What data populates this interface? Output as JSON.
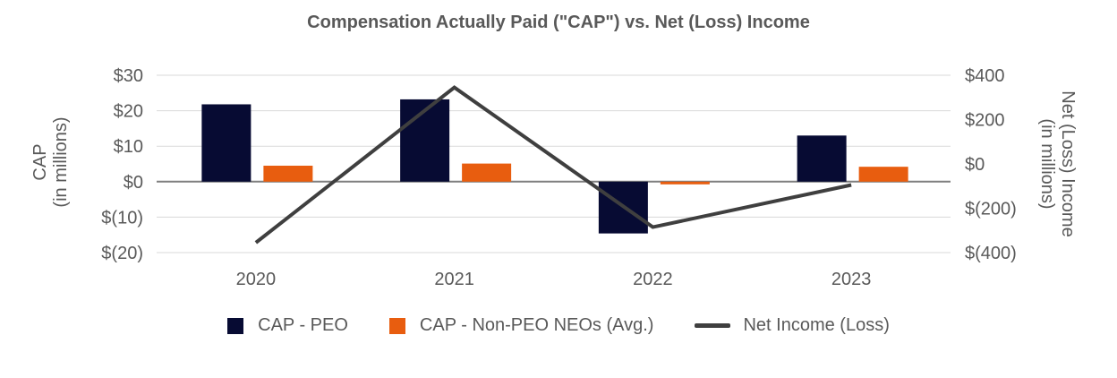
{
  "title": "Compensation Actually Paid (\"CAP\") vs. Net (Loss) Income",
  "chart_data": {
    "type": "combo",
    "categories": [
      "2020",
      "2021",
      "2022",
      "2023"
    ],
    "series": [
      {
        "name": "CAP - PEO",
        "kind": "bar",
        "axis": "left",
        "color": "#070b33",
        "values": [
          21.8,
          23.2,
          -14.6,
          13
        ]
      },
      {
        "name": "CAP - Non-PEO NEOs (Avg.)",
        "kind": "bar",
        "axis": "left",
        "color": "#e85d0f",
        "values": [
          4.5,
          5.1,
          -0.5,
          4.2
        ]
      },
      {
        "name": "Net Income (Loss)",
        "kind": "line",
        "axis": "right",
        "color": "#3f3f3f",
        "values": [
          -355,
          345,
          -285,
          -95
        ]
      }
    ],
    "left_axis": {
      "title_line1": "CAP",
      "title_line2": "(in millions)",
      "range": [
        -20,
        30
      ],
      "ticks": [
        {
          "label": "$30",
          "value": 30
        },
        {
          "label": "$20",
          "value": 20
        },
        {
          "label": "$10",
          "value": 10
        },
        {
          "label": "$0",
          "value": 0
        },
        {
          "label": "$(10)",
          "value": -10
        },
        {
          "label": "$(20)",
          "value": -20
        }
      ]
    },
    "right_axis": {
      "title_line1": "Net (Loss) Income",
      "title_line2": "(in millions)",
      "range": [
        -400,
        400
      ],
      "ticks": [
        {
          "label": "$400",
          "value": 400
        },
        {
          "label": "$200",
          "value": 200
        },
        {
          "label": "$0",
          "value": 0
        },
        {
          "label": "$(200)",
          "value": -200
        },
        {
          "label": "$(400)",
          "value": -400
        }
      ]
    },
    "grid": true,
    "legend_position": "bottom",
    "grid_color": "#d9d9d9",
    "zero_line_color": "#7f7f7f",
    "text_color": "#595959"
  }
}
